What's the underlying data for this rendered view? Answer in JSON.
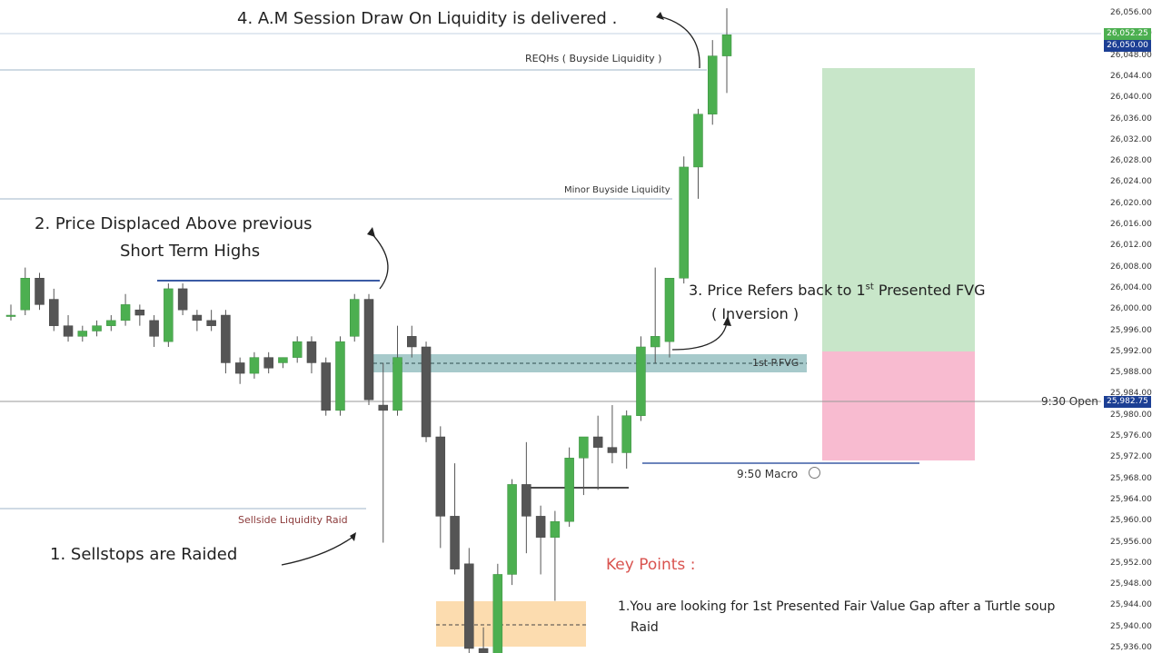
{
  "chart_data": {
    "type": "candlestick",
    "yticks": [
      "26,056.00",
      "26,052.00",
      "26,048.00",
      "26,044.00",
      "26,040.00",
      "26,036.00",
      "26,032.00",
      "26,028.00",
      "26,024.00",
      "26,020.00",
      "26,016.00",
      "26,012.00",
      "26,008.00",
      "26,004.00",
      "26,000.00",
      "25,996.00",
      "25,992.00",
      "25,988.00",
      "25,984.00",
      "25,980.00",
      "25,976.00",
      "25,972.00",
      "25,968.00",
      "25,964.00",
      "25,960.00",
      "25,956.00",
      "25,952.00",
      "25,948.00",
      "25,944.00",
      "25,940.00",
      "25,936.00"
    ],
    "ylim": [
      25935,
      26058
    ],
    "price_tags": [
      {
        "text": "26,052.25",
        "color": "#4caf50",
        "price": 26052.25
      },
      {
        "text": "26,050.00",
        "color": "#1c3f94",
        "price": 26050.0
      },
      {
        "text": "25,982.75",
        "color": "#1c3f94",
        "price": 25982.75
      }
    ],
    "candles": [
      {
        "o": 25999,
        "h": 26001,
        "l": 25998,
        "c": 25999
      },
      {
        "o": 26000,
        "h": 26008,
        "l": 25999,
        "c": 26006
      },
      {
        "o": 26006,
        "h": 26007,
        "l": 26000,
        "c": 26001
      },
      {
        "o": 26002,
        "h": 26004,
        "l": 25996,
        "c": 25997
      },
      {
        "o": 25997,
        "h": 25999,
        "l": 25994,
        "c": 25995
      },
      {
        "o": 25995,
        "h": 25997,
        "l": 25994,
        "c": 25996
      },
      {
        "o": 25996,
        "h": 25998,
        "l": 25995,
        "c": 25997
      },
      {
        "o": 25997,
        "h": 25999,
        "l": 25996,
        "c": 25998
      },
      {
        "o": 25998,
        "h": 26003,
        "l": 25997,
        "c": 26001
      },
      {
        "o": 26000,
        "h": 26001,
        "l": 25997,
        "c": 25999
      },
      {
        "o": 25998,
        "h": 25999,
        "l": 25993,
        "c": 25995
      },
      {
        "o": 25994,
        "h": 26005,
        "l": 25993,
        "c": 26004
      },
      {
        "o": 26004,
        "h": 26005,
        "l": 25999,
        "c": 26000
      },
      {
        "o": 25999,
        "h": 26000,
        "l": 25996,
        "c": 25998
      },
      {
        "o": 25998,
        "h": 26000,
        "l": 25996,
        "c": 25997
      },
      {
        "o": 25999,
        "h": 26000,
        "l": 25988,
        "c": 25990
      },
      {
        "o": 25990,
        "h": 25991,
        "l": 25986,
        "c": 25988
      },
      {
        "o": 25988,
        "h": 25992,
        "l": 25987,
        "c": 25991
      },
      {
        "o": 25991,
        "h": 25992,
        "l": 25988,
        "c": 25989
      },
      {
        "o": 25990,
        "h": 25991,
        "l": 25989,
        "c": 25991
      },
      {
        "o": 25991,
        "h": 25995,
        "l": 25990,
        "c": 25994
      },
      {
        "o": 25994,
        "h": 25995,
        "l": 25988,
        "c": 25990
      },
      {
        "o": 25990,
        "h": 25991,
        "l": 25980,
        "c": 25981
      },
      {
        "o": 25981,
        "h": 25995,
        "l": 25980,
        "c": 25994
      },
      {
        "o": 25995,
        "h": 26003,
        "l": 25994,
        "c": 26002
      },
      {
        "o": 26002,
        "h": 26003,
        "l": 25982,
        "c": 25983
      },
      {
        "o": 25982,
        "h": 25990,
        "l": 25956,
        "c": 25981
      },
      {
        "o": 25981,
        "h": 25997,
        "l": 25980,
        "c": 25991
      },
      {
        "o": 25995,
        "h": 25997,
        "l": 25991,
        "c": 25993
      },
      {
        "o": 25993,
        "h": 25994,
        "l": 25975,
        "c": 25976
      },
      {
        "o": 25976,
        "h": 25978,
        "l": 25955,
        "c": 25961
      },
      {
        "o": 25961,
        "h": 25971,
        "l": 25950,
        "c": 25951
      },
      {
        "o": 25952,
        "h": 25955,
        "l": 25932,
        "c": 25936
      },
      {
        "o": 25936,
        "h": 25940,
        "l": 25932,
        "c": 25934
      },
      {
        "o": 25934,
        "h": 25952,
        "l": 25933,
        "c": 25950
      },
      {
        "o": 25950,
        "h": 25968,
        "l": 25948,
        "c": 25967
      },
      {
        "o": 25967,
        "h": 25975,
        "l": 25954,
        "c": 25961
      },
      {
        "o": 25961,
        "h": 25963,
        "l": 25950,
        "c": 25957
      },
      {
        "o": 25957,
        "h": 25962,
        "l": 25945,
        "c": 25960
      },
      {
        "o": 25960,
        "h": 25974,
        "l": 25959,
        "c": 25972
      },
      {
        "o": 25972,
        "h": 25976,
        "l": 25965,
        "c": 25976
      },
      {
        "o": 25976,
        "h": 25980,
        "l": 25966,
        "c": 25974
      },
      {
        "o": 25974,
        "h": 25982,
        "l": 25971,
        "c": 25973
      },
      {
        "o": 25973,
        "h": 25981,
        "l": 25970,
        "c": 25980
      },
      {
        "o": 25980,
        "h": 25995,
        "l": 25979,
        "c": 25993
      },
      {
        "o": 25993,
        "h": 26008,
        "l": 25990,
        "c": 25995
      },
      {
        "o": 25994,
        "h": 26006,
        "l": 25991,
        "c": 26006
      },
      {
        "o": 26006,
        "h": 26029,
        "l": 26005,
        "c": 26027
      },
      {
        "o": 26027,
        "h": 26038,
        "l": 26021,
        "c": 26037
      },
      {
        "o": 26037,
        "h": 26051,
        "l": 26035,
        "c": 26048
      },
      {
        "o": 26048,
        "h": 26057,
        "l": 26041,
        "c": 26052
      }
    ]
  },
  "lines": {
    "reqhs": "REQHs ( Buyside Liquidity )",
    "minor_buyside": "Minor Buyside Liquidity",
    "sellside": "Sellside Liquidity Raid",
    "open_930": "9:30 Open",
    "macro_950": "9:50 Macro",
    "fvg": "1st P.FVG"
  },
  "annotations": {
    "a1": "1. Sellstops are Raided",
    "a2_line1": "2. Price Displaced Above previous",
    "a2_line2": "Short Term Highs",
    "a3_prefix": "3. Price Refers back to 1",
    "a3_sup": "st",
    "a3_suffix": " Presented FVG",
    "a3_line2": "( Inversion )",
    "a4": "4. A.M Session Draw On Liquidity is delivered ."
  },
  "key_points": {
    "title": "Key Points :",
    "p1_line1": "1.You are looking for 1st Presented Fair Value Gap after a Turtle soup",
    "p1_line2": "Raid"
  },
  "colors": {
    "bull": "#4caf50",
    "bear": "#555555",
    "fvg": "#5f9ea0",
    "target": "#c8e6c9",
    "stop": "#f8bbd0",
    "orange": "#fbd39b"
  }
}
